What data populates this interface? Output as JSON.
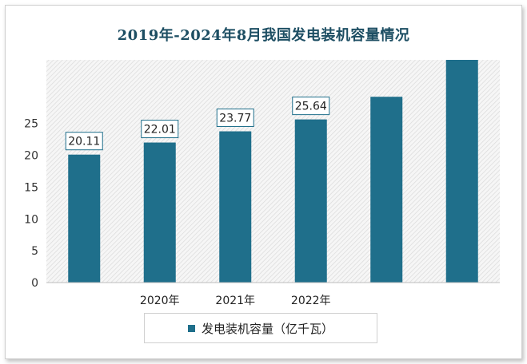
{
  "title": "2019年-2024年8月我国发电装机容量情况",
  "legend": {
    "label": "发电装机容量（亿千瓦）"
  },
  "colors": {
    "bar": "#1f6f8b",
    "title": "#1d4e63",
    "label_border": "#1f6f8b"
  },
  "chart_data": {
    "type": "bar",
    "title": "2019年-2024年8月我国发电装机容量情况",
    "xlabel": "",
    "ylabel": "",
    "ylim": [
      0,
      35
    ],
    "yticks": [
      "0",
      "5",
      "10",
      "15",
      "20",
      "25"
    ],
    "categories": [
      "",
      "2020年",
      "2021年",
      "2022年",
      "",
      ""
    ],
    "series": [
      {
        "name": "发电装机容量（亿千瓦）",
        "values": [
          20.11,
          22.01,
          23.77,
          25.64,
          29.2,
          35
        ],
        "labels": [
          "20.11",
          "22.01",
          "23.77",
          "25.64",
          "",
          ""
        ]
      }
    ],
    "grid": false,
    "legend_position": "bottom"
  }
}
